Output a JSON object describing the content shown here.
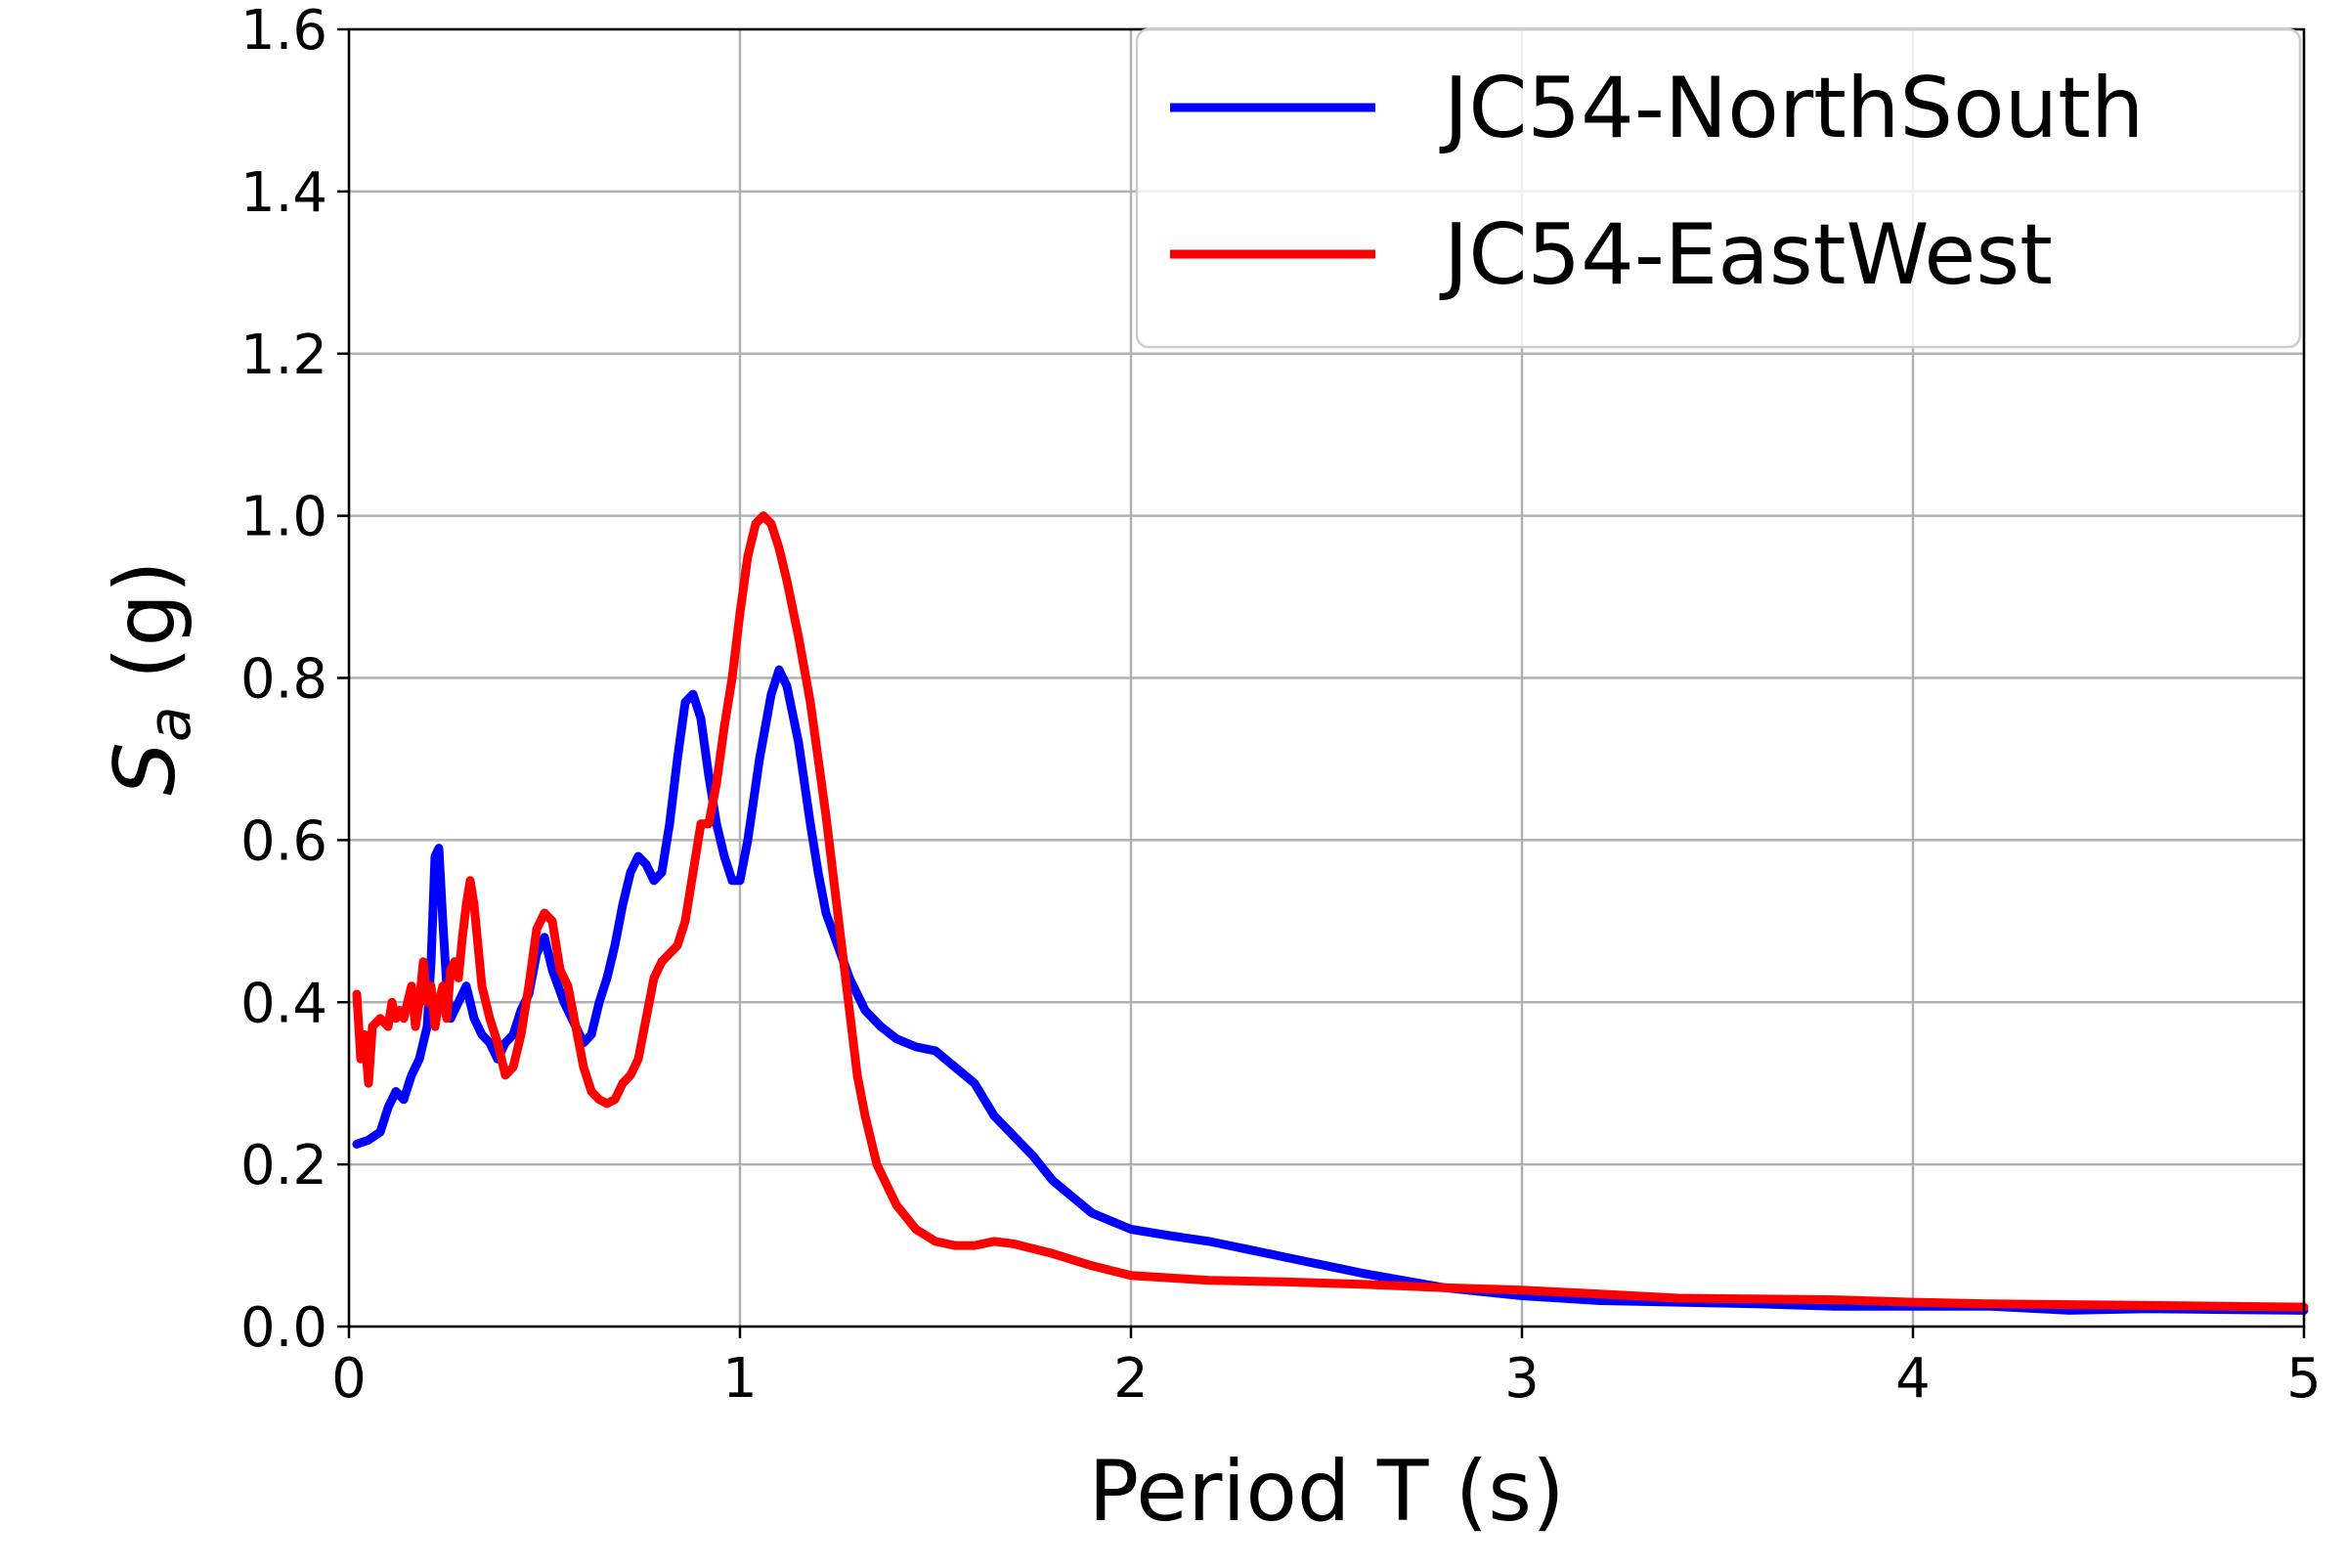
{
  "chart_data": {
    "type": "line",
    "title": "",
    "xlabel": "Period T (s)",
    "ylabel_main": "S",
    "ylabel_sub": "a",
    "ylabel_unit": " (g)",
    "xlim": [
      0,
      5
    ],
    "ylim": [
      0,
      1.6
    ],
    "xticks": [
      0,
      1,
      2,
      3,
      4,
      5
    ],
    "xtick_labels": [
      "0",
      "1",
      "2",
      "3",
      "4",
      "5"
    ],
    "yticks": [
      0.0,
      0.2,
      0.4,
      0.6,
      0.8,
      1.0,
      1.2,
      1.4,
      1.6
    ],
    "ytick_labels": [
      "0.0",
      "0.2",
      "0.4",
      "0.6",
      "0.8",
      "1.0",
      "1.2",
      "1.4",
      "1.6"
    ],
    "grid": true,
    "legend_position": "upper-right",
    "series": [
      {
        "name": "JC54-NorthSouth",
        "color": "#0000ff",
        "x": [
          0.02,
          0.05,
          0.08,
          0.1,
          0.12,
          0.14,
          0.16,
          0.18,
          0.2,
          0.21,
          0.22,
          0.23,
          0.24,
          0.25,
          0.26,
          0.27,
          0.28,
          0.3,
          0.32,
          0.34,
          0.36,
          0.38,
          0.4,
          0.42,
          0.44,
          0.46,
          0.48,
          0.5,
          0.52,
          0.55,
          0.58,
          0.6,
          0.62,
          0.64,
          0.66,
          0.68,
          0.7,
          0.72,
          0.74,
          0.76,
          0.78,
          0.8,
          0.82,
          0.84,
          0.86,
          0.88,
          0.9,
          0.92,
          0.94,
          0.96,
          0.98,
          1.0,
          1.02,
          1.05,
          1.08,
          1.1,
          1.12,
          1.15,
          1.18,
          1.2,
          1.22,
          1.25,
          1.28,
          1.32,
          1.36,
          1.4,
          1.45,
          1.5,
          1.55,
          1.6,
          1.65,
          1.7,
          1.75,
          1.8,
          1.85,
          1.9,
          2.0,
          2.1,
          2.2,
          2.3,
          2.4,
          2.5,
          2.6,
          2.8,
          3.0,
          3.2,
          3.4,
          3.6,
          3.8,
          4.0,
          4.2,
          4.4,
          4.6,
          4.8,
          5.0
        ],
        "y": [
          0.225,
          0.23,
          0.24,
          0.27,
          0.29,
          0.28,
          0.31,
          0.33,
          0.37,
          0.45,
          0.58,
          0.59,
          0.5,
          0.42,
          0.38,
          0.39,
          0.4,
          0.42,
          0.38,
          0.36,
          0.35,
          0.33,
          0.35,
          0.36,
          0.39,
          0.41,
          0.46,
          0.48,
          0.44,
          0.4,
          0.37,
          0.35,
          0.36,
          0.4,
          0.43,
          0.47,
          0.52,
          0.56,
          0.58,
          0.57,
          0.55,
          0.56,
          0.62,
          0.7,
          0.77,
          0.78,
          0.75,
          0.68,
          0.62,
          0.58,
          0.55,
          0.55,
          0.6,
          0.7,
          0.78,
          0.81,
          0.79,
          0.72,
          0.62,
          0.56,
          0.51,
          0.47,
          0.43,
          0.39,
          0.37,
          0.355,
          0.345,
          0.34,
          0.32,
          0.3,
          0.26,
          0.235,
          0.21,
          0.18,
          0.16,
          0.14,
          0.12,
          0.112,
          0.105,
          0.095,
          0.085,
          0.075,
          0.065,
          0.048,
          0.038,
          0.032,
          0.03,
          0.028,
          0.025,
          0.025,
          0.025,
          0.02,
          0.022,
          0.021,
          0.02
        ]
      },
      {
        "name": "JC54-EastWest",
        "color": "#ff0000",
        "x": [
          0.02,
          0.03,
          0.04,
          0.05,
          0.06,
          0.08,
          0.1,
          0.11,
          0.12,
          0.13,
          0.14,
          0.15,
          0.16,
          0.17,
          0.18,
          0.19,
          0.2,
          0.21,
          0.22,
          0.23,
          0.24,
          0.25,
          0.26,
          0.27,
          0.28,
          0.29,
          0.3,
          0.31,
          0.32,
          0.33,
          0.34,
          0.36,
          0.38,
          0.4,
          0.42,
          0.44,
          0.46,
          0.48,
          0.5,
          0.52,
          0.54,
          0.56,
          0.58,
          0.6,
          0.62,
          0.64,
          0.66,
          0.68,
          0.7,
          0.72,
          0.74,
          0.76,
          0.78,
          0.8,
          0.82,
          0.84,
          0.86,
          0.88,
          0.9,
          0.92,
          0.94,
          0.96,
          0.98,
          1.0,
          1.02,
          1.04,
          1.06,
          1.08,
          1.1,
          1.12,
          1.15,
          1.18,
          1.2,
          1.22,
          1.24,
          1.26,
          1.28,
          1.3,
          1.32,
          1.35,
          1.4,
          1.45,
          1.5,
          1.55,
          1.6,
          1.65,
          1.7,
          1.8,
          1.9,
          2.0,
          2.1,
          2.2,
          2.4,
          2.6,
          2.8,
          3.0,
          3.2,
          3.4,
          3.6,
          3.8,
          4.0,
          4.2,
          4.4,
          4.6,
          4.8,
          5.0
        ],
        "y": [
          0.41,
          0.33,
          0.36,
          0.3,
          0.37,
          0.38,
          0.37,
          0.4,
          0.38,
          0.39,
          0.38,
          0.4,
          0.42,
          0.37,
          0.4,
          0.45,
          0.4,
          0.42,
          0.37,
          0.4,
          0.42,
          0.38,
          0.44,
          0.45,
          0.43,
          0.48,
          0.52,
          0.55,
          0.52,
          0.47,
          0.42,
          0.38,
          0.35,
          0.31,
          0.32,
          0.36,
          0.42,
          0.49,
          0.51,
          0.5,
          0.44,
          0.42,
          0.37,
          0.32,
          0.29,
          0.28,
          0.275,
          0.28,
          0.3,
          0.31,
          0.33,
          0.38,
          0.43,
          0.45,
          0.46,
          0.47,
          0.5,
          0.56,
          0.62,
          0.62,
          0.67,
          0.74,
          0.8,
          0.88,
          0.95,
          0.99,
          1.0,
          0.99,
          0.96,
          0.92,
          0.85,
          0.77,
          0.7,
          0.63,
          0.55,
          0.47,
          0.39,
          0.31,
          0.26,
          0.2,
          0.15,
          0.12,
          0.105,
          0.1,
          0.1,
          0.105,
          0.102,
          0.09,
          0.075,
          0.063,
          0.06,
          0.057,
          0.055,
          0.052,
          0.048,
          0.045,
          0.04,
          0.035,
          0.034,
          0.033,
          0.03,
          0.028,
          0.027,
          0.026,
          0.025,
          0.024
        ]
      }
    ]
  }
}
